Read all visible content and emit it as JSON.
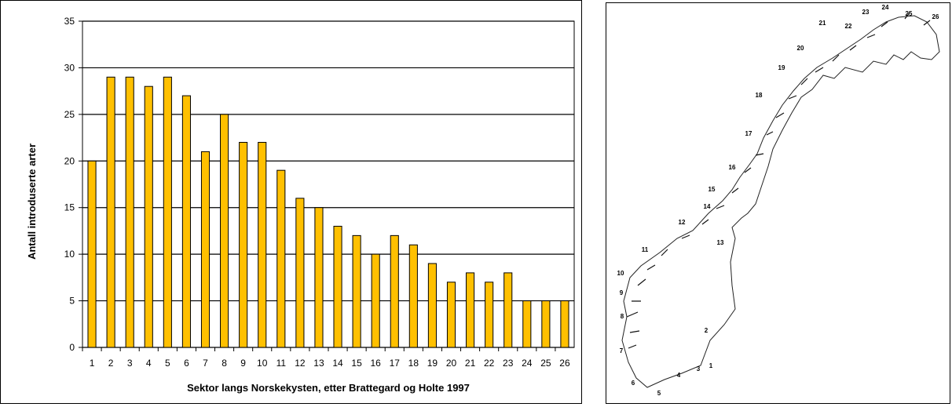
{
  "chart_data": {
    "type": "bar",
    "categories": [
      "1",
      "2",
      "3",
      "4",
      "5",
      "6",
      "7",
      "8",
      "9",
      "10",
      "11",
      "12",
      "13",
      "14",
      "15",
      "16",
      "17",
      "18",
      "19",
      "20",
      "21",
      "22",
      "23",
      "24",
      "25",
      "26"
    ],
    "values": [
      20,
      29,
      29,
      28,
      29,
      27,
      21,
      25,
      22,
      22,
      19,
      16,
      15,
      13,
      12,
      10,
      12,
      11,
      9,
      7,
      8,
      7,
      8,
      5,
      5,
      5
    ],
    "title": "",
    "xlabel": "Sektor langs Norskekysten, etter Brattegard og Holte 1997",
    "ylabel": "Antall introduserte arter",
    "ylim": [
      0,
      35
    ],
    "yticks": [
      0,
      5,
      10,
      15,
      20,
      25,
      30,
      35
    ],
    "grid": "horizontal",
    "legend": "none",
    "bar_color": "#FFC000",
    "bar_edge_color": "#000000"
  },
  "map": {
    "sector_labels": [
      "1",
      "2",
      "3",
      "4",
      "5",
      "6",
      "7",
      "8",
      "9",
      "10",
      "11",
      "12",
      "13",
      "14",
      "15",
      "16",
      "17",
      "18",
      "19",
      "20",
      "21",
      "22",
      "23",
      "24",
      "25",
      "26"
    ]
  }
}
